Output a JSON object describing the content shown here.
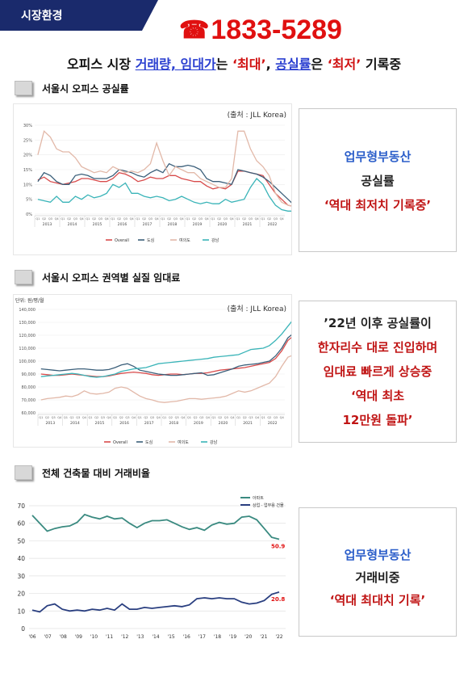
{
  "tag": "시장환경",
  "phone": "1833-5289",
  "headline": {
    "p1": "오피스 시장 ",
    "p2": "거래량, 임대가",
    "p3": "는 ",
    "p4": "‘최대’",
    "p5": ", ",
    "p6": "공실률",
    "p7": "은 ",
    "p8": "‘최저’",
    "p9": " 기록중"
  },
  "sections": [
    {
      "title": "서울시 오피스 공실률"
    },
    {
      "title": "서울시 오피스 권역별 실질 임대료"
    },
    {
      "title": "전체 건축물 대비 거래비율"
    }
  ],
  "source": "(출처 : JLL Korea)",
  "unit2": "단위: 원/평/월",
  "callout1": {
    "l1": "업무형부동산",
    "l2": "공실률",
    "l3": "‘역대 최저치 기록중’"
  },
  "callout2": {
    "l1": "’22년 이후 공실률이",
    "l2": "한자리수 대로 진입하며",
    "l3": "임대료 빠르게 상승중",
    "l4": "‘역대 최초",
    "l5": "12만원 돌파’"
  },
  "callout3": {
    "l1": "업무형부동산",
    "l2": "거래비중",
    "l3": "‘역대 최대치 기록’"
  },
  "legend12": [
    "Overall",
    "도심",
    "여의도",
    "강남"
  ],
  "legend3": [
    "아파트",
    "상업 · 업무용 건물"
  ],
  "colors": {
    "overall": "#d84b4b",
    "dosim": "#3b5f7a",
    "yeouido": "#e2b8a8",
    "gangnam": "#3ab4b8",
    "apt": "#3a8a80",
    "comm": "#2a3f80",
    "navy": "#1a2a6c",
    "red": "#e01010"
  },
  "chart_data": [
    {
      "type": "line",
      "title": "서울시 오피스 공실률",
      "ylabels": [
        "30%",
        "25%",
        "20%",
        "15%",
        "10%",
        "5%",
        "0%"
      ],
      "ylim": [
        0,
        30
      ],
      "years": [
        "2013",
        "2014",
        "2015",
        "2016",
        "2017",
        "2018",
        "2019",
        "2020",
        "2021",
        "2022"
      ],
      "quarters": [
        "Q1",
        "Q2",
        "Q3",
        "Q4"
      ],
      "series": [
        {
          "name": "Overall",
          "values": [
            11.5,
            12.5,
            11,
            10.5,
            10,
            10.5,
            11,
            12,
            12,
            11.5,
            11,
            11,
            12,
            14,
            13.5,
            12.5,
            11,
            11.5,
            12.5,
            12,
            12,
            13,
            13,
            12,
            11.5,
            11,
            11,
            9.5,
            8.5,
            9,
            8.5,
            10,
            14.5,
            14.5,
            14,
            13.5,
            13,
            10,
            7,
            5,
            3,
            2.5
          ]
        },
        {
          "name": "도심",
          "values": [
            11,
            14,
            13,
            11,
            10,
            10,
            13,
            13.5,
            13,
            12,
            12,
            12,
            13,
            15,
            14.5,
            14,
            13,
            12.5,
            14,
            15,
            14,
            17,
            16,
            16,
            16.5,
            16,
            15,
            12,
            11,
            11,
            10.5,
            10,
            15,
            14.5,
            14,
            13.5,
            12.5,
            11,
            9,
            7,
            5,
            3
          ]
        },
        {
          "name": "여의도",
          "values": [
            20,
            28,
            26,
            22,
            21,
            21,
            19,
            16,
            15,
            14,
            14.5,
            14,
            16,
            15,
            14,
            14.5,
            14,
            15,
            17,
            24,
            18,
            13,
            16,
            15,
            14,
            14,
            12,
            11,
            10,
            9,
            9,
            12,
            28,
            28,
            22,
            18,
            16,
            13,
            7,
            4,
            3,
            2.5
          ]
        },
        {
          "name": "강남",
          "values": [
            5,
            4.5,
            4,
            6,
            4,
            4,
            6,
            5,
            6.5,
            5.5,
            6,
            7,
            10,
            9,
            10.5,
            7,
            7,
            6,
            5.5,
            6,
            5.5,
            4.5,
            5,
            6,
            5,
            4,
            3.5,
            4,
            3.5,
            3.5,
            5,
            4,
            4.5,
            5,
            9,
            12,
            10,
            6,
            3,
            1.5,
            1,
            1
          ]
        }
      ]
    },
    {
      "type": "line",
      "title": "서울시 오피스 권역별 실질 임대료",
      "ylabels": [
        "140,000",
        "130,000",
        "120,000",
        "110,000",
        "100,000",
        "90,000",
        "80,000",
        "70,000",
        "60,000"
      ],
      "ylim": [
        60000,
        140000
      ],
      "years": [
        "2013",
        "2014",
        "2015",
        "2016",
        "2017",
        "2018",
        "2019",
        "2020",
        "2021",
        "2022"
      ],
      "quarters": [
        "Q1",
        "Q2",
        "Q3",
        "Q4"
      ],
      "series": [
        {
          "name": "Overall",
          "values": [
            90000,
            89500,
            89000,
            89000,
            89500,
            90000,
            89500,
            89000,
            88500,
            88000,
            88000,
            88500,
            89500,
            90500,
            91000,
            91500,
            91000,
            90500,
            89500,
            89000,
            89500,
            90000,
            90000,
            89500,
            90000,
            90500,
            90500,
            91000,
            92000,
            93000,
            93500,
            94000,
            94500,
            95000,
            96000,
            97000,
            98000,
            99000,
            102000,
            108000,
            116000,
            120000
          ]
        },
        {
          "name": "도심",
          "values": [
            94000,
            93500,
            93000,
            92500,
            93000,
            93500,
            94000,
            94000,
            93500,
            93000,
            93000,
            93500,
            95000,
            97000,
            98000,
            96000,
            93000,
            92000,
            91000,
            90000,
            89500,
            89000,
            89000,
            89500,
            90000,
            90500,
            91000,
            89000,
            89500,
            91000,
            92500,
            94000,
            96000,
            97000,
            97500,
            98000,
            99000,
            100000,
            104000,
            110000,
            118000,
            122000
          ]
        },
        {
          "name": "여의도",
          "values": [
            70000,
            71000,
            71500,
            72000,
            73000,
            72500,
            74000,
            77000,
            75000,
            74500,
            75000,
            76000,
            79000,
            80000,
            79000,
            76000,
            73000,
            71000,
            70000,
            68500,
            68000,
            68500,
            69000,
            70000,
            71000,
            71000,
            70500,
            71000,
            71500,
            72000,
            73000,
            75000,
            77000,
            76000,
            77000,
            79000,
            81000,
            83000,
            88000,
            96000,
            103000,
            105000
          ]
        },
        {
          "name": "강남",
          "values": [
            88000,
            88500,
            89000,
            89500,
            90000,
            90500,
            90000,
            89000,
            88000,
            87500,
            88000,
            89000,
            90000,
            92000,
            93000,
            94000,
            94500,
            95000,
            96500,
            98000,
            98500,
            99000,
            99500,
            100000,
            100500,
            101000,
            101500,
            102000,
            103000,
            103500,
            104000,
            104500,
            105000,
            107000,
            109000,
            109500,
            110000,
            112000,
            116000,
            121000,
            127000,
            133000
          ]
        }
      ]
    },
    {
      "type": "line",
      "title": "전체 건축물 대비 거래비율",
      "ylabels": [
        "70",
        "60",
        "50",
        "40",
        "30",
        "20",
        "10",
        "0"
      ],
      "ylim": [
        0,
        70
      ],
      "xlabels": [
        "'06",
        "'07",
        "'08",
        "'09",
        "'10",
        "'11",
        "'12",
        "'13",
        "'14",
        "'15",
        "'16",
        "'17",
        "'18",
        "'19",
        "'20",
        "'21",
        "'22"
      ],
      "series": [
        {
          "name": "아파트",
          "values": [
            64.5,
            60,
            55.5,
            57,
            58,
            58.5,
            60.5,
            65,
            63.5,
            62.5,
            64,
            62.5,
            63,
            60,
            57.5,
            60,
            61.5,
            61.5,
            62,
            60,
            58,
            56.5,
            57.5,
            56,
            59,
            60.5,
            59.5,
            60,
            63.5,
            64,
            62,
            57,
            52,
            50.9
          ]
        },
        {
          "name": "상업 · 업무용 건물",
          "values": [
            10.5,
            9.5,
            13,
            14,
            11,
            10,
            10.5,
            10,
            11,
            10.5,
            11.5,
            10.5,
            14,
            11,
            11,
            12,
            11.5,
            12,
            12.5,
            13,
            12.5,
            13.5,
            17,
            17.5,
            17,
            17.5,
            17,
            17,
            15,
            14,
            14.5,
            16,
            19.5,
            20.8
          ]
        }
      ],
      "end_labels": [
        "50.9",
        "20.8"
      ]
    }
  ]
}
